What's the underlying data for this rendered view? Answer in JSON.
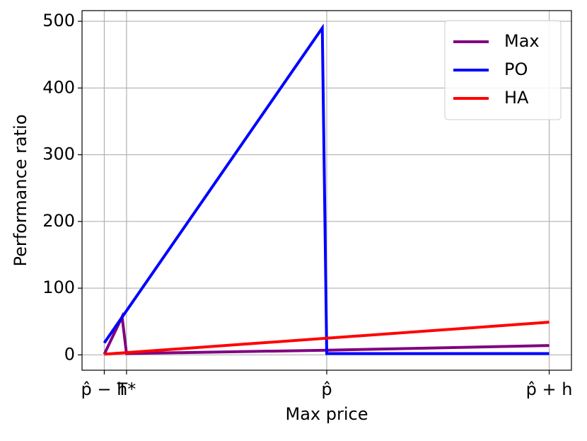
{
  "chart_data": {
    "type": "line",
    "xlabel": "Max price",
    "ylabel": "Performance ratio",
    "xlim": [
      -1.1,
      1.1
    ],
    "ylim": [
      -23,
      516
    ],
    "xticks": [
      {
        "value": -1,
        "label": "p̂ − h"
      },
      {
        "value": -0.9,
        "label": "T*"
      },
      {
        "value": 0,
        "label": "p̂"
      },
      {
        "value": 1,
        "label": "p̂ + h"
      }
    ],
    "yticks": [
      0,
      100,
      200,
      300,
      400,
      500
    ],
    "grid": true,
    "legend": "upper right",
    "series": [
      {
        "name": "Max",
        "color": "#800080",
        "x": [
          -1,
          -0.92,
          -0.9,
          0,
          1
        ],
        "values": [
          1,
          57,
          2,
          7,
          14
        ]
      },
      {
        "name": "PO",
        "color": "#0000ff",
        "x": [
          -1,
          -0.02,
          0,
          1
        ],
        "values": [
          18,
          490,
          2,
          2
        ]
      },
      {
        "name": "HA",
        "color": "#ff0000",
        "x": [
          -1,
          1
        ],
        "values": [
          1,
          49
        ]
      }
    ]
  }
}
